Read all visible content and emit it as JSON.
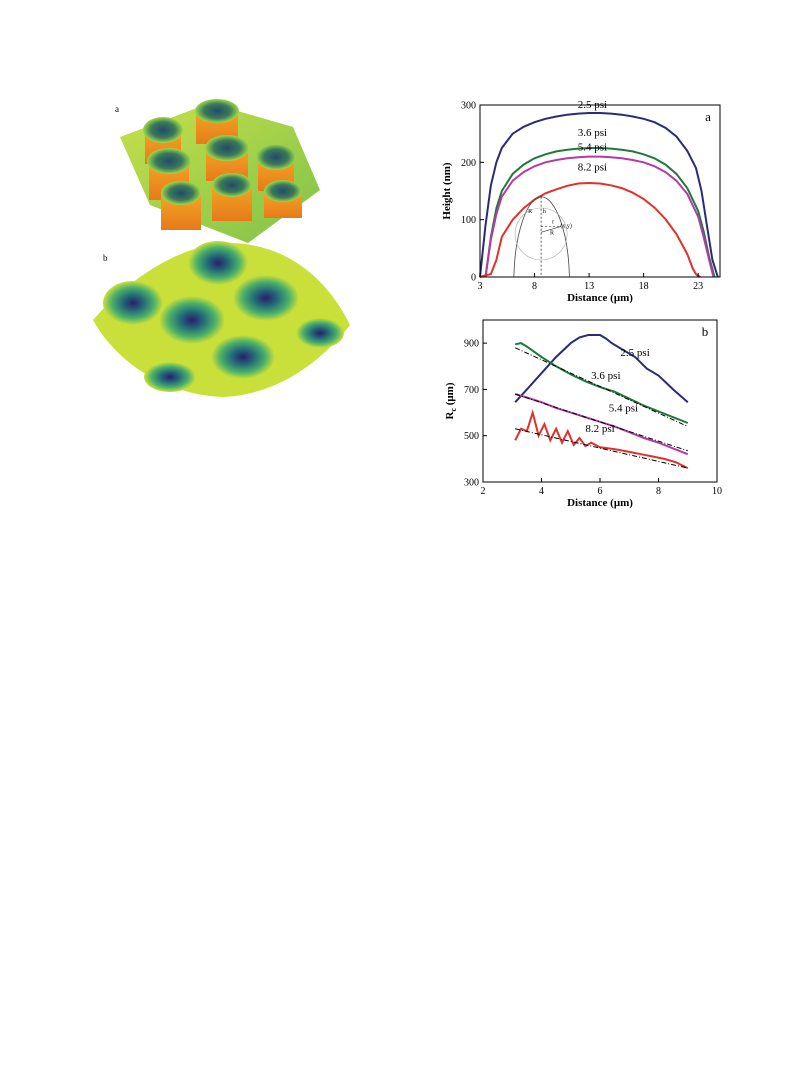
{
  "left_panels": {
    "a_label": "a",
    "b_label": "b"
  },
  "chart_data": [
    {
      "type": "line",
      "panel_label": "a",
      "xlabel": "Distance (μm)",
      "ylabel": "Height (nm)",
      "xlim": [
        3,
        25
      ],
      "ylim": [
        0,
        300
      ],
      "xticks": [
        3,
        8,
        13,
        18,
        23
      ],
      "yticks": [
        0,
        100,
        200,
        300
      ],
      "grid": false,
      "series": [
        {
          "name": "2.5 psi",
          "color": "#2b2a7a",
          "x": [
            3.0,
            3.5,
            4.0,
            4.5,
            5.0,
            6.0,
            7.0,
            8.0,
            9.0,
            10.0,
            11.0,
            12.0,
            13.0,
            14.0,
            15.0,
            16.0,
            17.0,
            18.0,
            19.0,
            20.0,
            21.0,
            22.0,
            22.8,
            23.3,
            23.8,
            24.3,
            24.8
          ],
          "y": [
            0,
            90,
            160,
            200,
            225,
            250,
            262,
            270,
            276,
            280,
            283,
            285,
            286,
            286,
            285,
            283,
            280,
            276,
            270,
            260,
            245,
            220,
            190,
            150,
            90,
            30,
            0
          ]
        },
        {
          "name": "3.6 psi",
          "color": "#1f7a3a",
          "x": [
            3.5,
            4.0,
            4.5,
            5.0,
            6.0,
            7.0,
            8.0,
            9.0,
            10.0,
            11.0,
            12.0,
            13.0,
            14.0,
            15.0,
            16.0,
            17.0,
            18.0,
            19.0,
            20.0,
            21.0,
            22.0,
            23.0,
            23.5,
            24.0,
            24.5
          ],
          "y": [
            0,
            70,
            120,
            150,
            180,
            196,
            207,
            214,
            219,
            222,
            224,
            225,
            225,
            224,
            222,
            219,
            214,
            207,
            196,
            180,
            155,
            115,
            80,
            35,
            0
          ]
        },
        {
          "name": "5.4 psi",
          "color": "#b53aa5",
          "x": [
            3.5,
            4.0,
            4.5,
            5.0,
            6.0,
            7.0,
            8.0,
            9.0,
            10.0,
            11.0,
            12.0,
            13.0,
            14.0,
            15.0,
            16.0,
            17.0,
            18.0,
            19.0,
            20.0,
            21.0,
            22.0,
            23.0,
            23.5,
            24.0,
            24.4
          ],
          "y": [
            0,
            65,
            110,
            140,
            168,
            183,
            193,
            200,
            204,
            207,
            209,
            210,
            210,
            209,
            207,
            204,
            200,
            193,
            183,
            168,
            145,
            105,
            70,
            30,
            0
          ]
        },
        {
          "name": "8.2 psi",
          "color": "#e0312a",
          "x": [
            3.0,
            3.5,
            4.0,
            4.5,
            5.0,
            6.0,
            7.0,
            8.0,
            9.0,
            10.0,
            11.0,
            12.0,
            13.0,
            14.0,
            15.0,
            16.0,
            17.0,
            18.0,
            19.0,
            20.0,
            21.0,
            22.0,
            22.5,
            22.8,
            23.0,
            23.2
          ],
          "y": [
            0,
            3,
            5,
            30,
            70,
            100,
            120,
            135,
            146,
            153,
            159,
            163,
            164,
            163,
            160,
            155,
            147,
            136,
            121,
            101,
            75,
            40,
            15,
            5,
            2,
            0
          ]
        }
      ],
      "inset_labels": [
        "R",
        "h",
        "r",
        "(x,y)",
        "R"
      ]
    },
    {
      "type": "line",
      "panel_label": "b",
      "xlabel": "Distance (μm)",
      "ylabel": "R",
      "ylabel_sub": "c",
      "ylabel_unit": " (μm)",
      "xlim": [
        2,
        10
      ],
      "ylim": [
        300,
        1000
      ],
      "xticks": [
        2,
        4,
        6,
        8,
        10
      ],
      "yticks": [
        300,
        500,
        700,
        900
      ],
      "grid": false,
      "series": [
        {
          "name": "2.5 psi",
          "color": "#2b2a7a",
          "x": [
            3.1,
            3.5,
            4.0,
            4.5,
            5.0,
            5.3,
            5.6,
            6.0,
            6.2,
            6.4,
            6.8,
            7.2,
            7.6,
            8.0,
            8.5,
            9.0
          ],
          "y": [
            645,
            700,
            770,
            840,
            900,
            925,
            935,
            935,
            920,
            900,
            870,
            840,
            790,
            760,
            700,
            645
          ]
        },
        {
          "name": "3.6 psi",
          "color": "#1f7a3a",
          "x": [
            3.1,
            3.3,
            3.5,
            4.0,
            4.5,
            5.0,
            5.5,
            6.0,
            6.5,
            7.0,
            7.5,
            8.0,
            8.5,
            9.0
          ],
          "y": [
            895,
            900,
            885,
            840,
            800,
            765,
            735,
            710,
            690,
            660,
            630,
            605,
            580,
            555
          ]
        },
        {
          "name": "5.4 psi",
          "color": "#b53aa5",
          "x": [
            3.1,
            3.5,
            4.0,
            4.5,
            5.0,
            5.5,
            6.0,
            6.5,
            7.0,
            7.5,
            8.0,
            8.5,
            9.0
          ],
          "y": [
            680,
            665,
            645,
            620,
            600,
            580,
            560,
            540,
            515,
            490,
            470,
            445,
            420
          ]
        },
        {
          "name": "8.2 psi",
          "color": "#e0312a",
          "x": [
            3.1,
            3.3,
            3.5,
            3.7,
            3.9,
            4.1,
            4.3,
            4.5,
            4.7,
            4.9,
            5.1,
            5.3,
            5.5,
            5.7,
            6.0,
            6.3,
            6.6,
            7.0,
            7.4,
            7.8,
            8.2,
            8.6,
            9.0
          ],
          "y": [
            480,
            530,
            520,
            600,
            500,
            550,
            480,
            530,
            470,
            520,
            460,
            490,
            455,
            470,
            450,
            445,
            440,
            430,
            420,
            410,
            400,
            385,
            360
          ]
        }
      ],
      "fit_lines": [
        {
          "x": [
            3.1,
            9.0
          ],
          "y": [
            880,
            540
          ]
        },
        {
          "x": [
            3.1,
            9.0
          ],
          "y": [
            680,
            435
          ]
        },
        {
          "x": [
            3.1,
            9.0
          ],
          "y": [
            530,
            360
          ]
        }
      ]
    }
  ]
}
